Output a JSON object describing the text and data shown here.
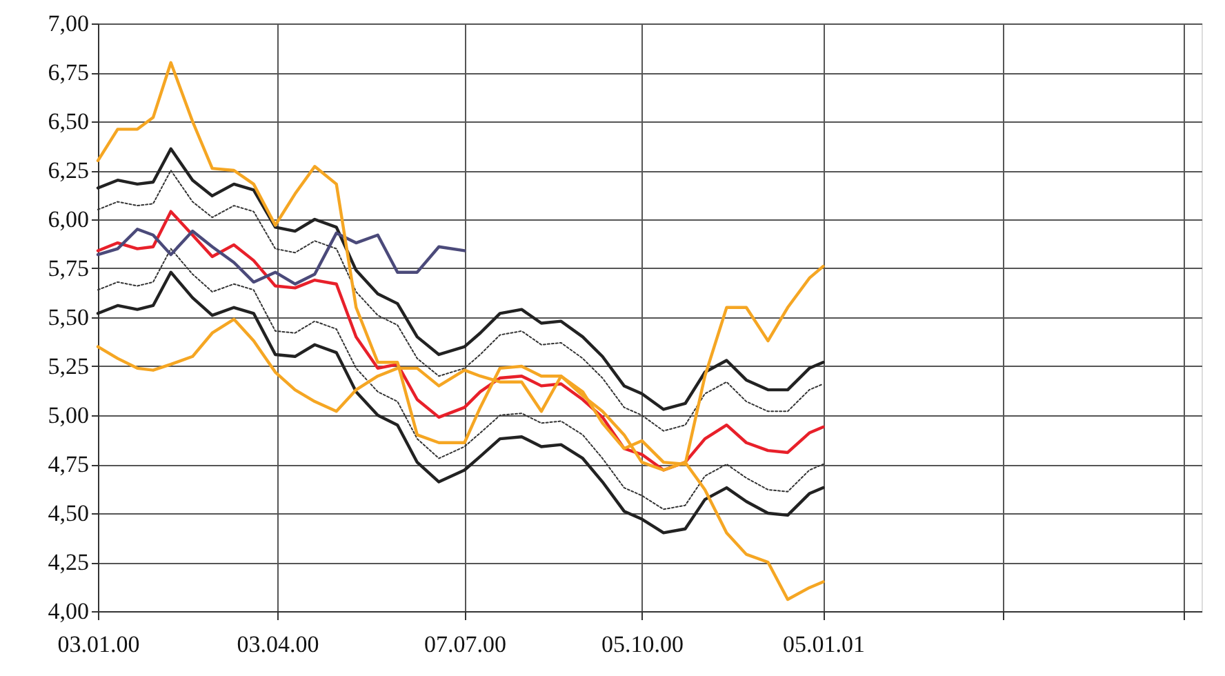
{
  "chart_data": {
    "type": "line",
    "grid": true,
    "marker": "none",
    "x": [
      "2000-01-03",
      "2000-01-13",
      "2000-01-23",
      "2000-01-31",
      "2000-02-09",
      "2000-02-20",
      "2000-03-01",
      "2000-03-12",
      "2000-03-22",
      "2000-04-02",
      "2000-04-12",
      "2000-04-22",
      "2000-05-03",
      "2000-05-13",
      "2000-05-24",
      "2000-06-03",
      "2000-06-13",
      "2000-06-24",
      "2000-07-07",
      "2000-07-15",
      "2000-07-25",
      "2000-08-05",
      "2000-08-15",
      "2000-08-25",
      "2000-09-05",
      "2000-09-15",
      "2000-09-26",
      "2000-10-05",
      "2000-10-16",
      "2000-10-27",
      "2000-11-06",
      "2000-11-17",
      "2000-11-27",
      "2000-12-08",
      "2000-12-18",
      "2000-12-29",
      "2001-01-05"
    ],
    "xlim": [
      "2000-01-03",
      "2001-07-16"
    ],
    "xticks": [
      {
        "value": "2000-01-03",
        "label": "03.01.00"
      },
      {
        "value": "2000-04-03",
        "label": "03.04.00"
      },
      {
        "value": "2000-07-07",
        "label": "07.07.00"
      },
      {
        "value": "2000-10-05",
        "label": "05.10.00"
      },
      {
        "value": "2001-01-05",
        "label": "05.01.01"
      },
      {
        "value": "2001-04-06",
        "label": null
      },
      {
        "value": "2001-07-07",
        "label": null
      }
    ],
    "ylim": [
      4,
      7
    ],
    "yticks": [
      {
        "value": 4,
        "label": "4,00"
      },
      {
        "value": 4.25,
        "label": "4,25"
      },
      {
        "value": 4.5,
        "label": "4,50"
      },
      {
        "value": 4.75,
        "label": "4,75"
      },
      {
        "value": 5,
        "label": "5,00"
      },
      {
        "value": 5.25,
        "label": "5,25"
      },
      {
        "value": 5.5,
        "label": "5,50"
      },
      {
        "value": 5.75,
        "label": "5,75"
      },
      {
        "value": 6,
        "label": "6,00"
      },
      {
        "value": 6.25,
        "label": "6,25"
      },
      {
        "value": 6.5,
        "label": "6,50"
      },
      {
        "value": 6.75,
        "label": "6,75"
      },
      {
        "value": 7,
        "label": "7,00"
      }
    ],
    "series": [
      {
        "color": "#222222",
        "line_style": "solid",
        "values": [
          6.16,
          6.2,
          6.18,
          6.19,
          6.36,
          6.2,
          6.12,
          6.18,
          6.15,
          5.96,
          5.94,
          6.0,
          5.96,
          5.74,
          5.62,
          5.57,
          5.4,
          5.31,
          5.35,
          5.42,
          5.52,
          5.54,
          5.47,
          5.48,
          5.4,
          5.3,
          5.15,
          5.11,
          5.03,
          5.06,
          5.22,
          5.28,
          5.18,
          5.13,
          5.13,
          5.24,
          5.27
        ]
      },
      {
        "color": "#333333",
        "line_style": "dotted",
        "values": [
          6.05,
          6.09,
          6.07,
          6.08,
          6.25,
          6.09,
          6.01,
          6.07,
          6.04,
          5.85,
          5.83,
          5.89,
          5.85,
          5.63,
          5.51,
          5.46,
          5.29,
          5.2,
          5.24,
          5.31,
          5.41,
          5.43,
          5.36,
          5.37,
          5.29,
          5.19,
          5.04,
          5.0,
          4.92,
          4.95,
          5.11,
          5.17,
          5.07,
          5.02,
          5.02,
          5.13,
          5.16
        ]
      },
      {
        "color": "#e8202a",
        "line_style": "solid",
        "values": [
          5.84,
          5.88,
          5.85,
          5.86,
          6.04,
          5.92,
          5.81,
          5.87,
          5.79,
          5.66,
          5.65,
          5.69,
          5.67,
          5.4,
          5.24,
          5.26,
          5.08,
          4.99,
          5.04,
          5.12,
          5.19,
          5.2,
          5.15,
          5.16,
          5.08,
          4.99,
          4.83,
          4.8,
          4.72,
          4.76,
          4.88,
          4.95,
          4.86,
          4.82,
          4.81,
          4.91,
          4.94
        ]
      },
      {
        "color": "#333333",
        "line_style": "dotted",
        "values": [
          5.64,
          5.68,
          5.66,
          5.68,
          5.85,
          5.72,
          5.63,
          5.67,
          5.64,
          5.43,
          5.42,
          5.48,
          5.44,
          5.24,
          5.12,
          5.07,
          4.88,
          4.78,
          4.84,
          4.91,
          5.0,
          5.01,
          4.96,
          4.97,
          4.9,
          4.78,
          4.63,
          4.59,
          4.52,
          4.54,
          4.69,
          4.75,
          4.68,
          4.62,
          4.61,
          4.72,
          4.75
        ]
      },
      {
        "color": "#222222",
        "line_style": "solid",
        "values": [
          5.52,
          5.56,
          5.54,
          5.56,
          5.73,
          5.6,
          5.51,
          5.55,
          5.52,
          5.31,
          5.3,
          5.36,
          5.32,
          5.12,
          5.0,
          4.95,
          4.76,
          4.66,
          4.72,
          4.79,
          4.88,
          4.89,
          4.84,
          4.85,
          4.78,
          4.66,
          4.51,
          4.47,
          4.4,
          4.42,
          4.57,
          4.63,
          4.56,
          4.5,
          4.49,
          4.6,
          4.63
        ]
      },
      {
        "color": "#4b4a7a",
        "line_style": "solid",
        "values": [
          5.82,
          5.85,
          5.95,
          5.92,
          5.82,
          5.94,
          5.86,
          5.78,
          5.68,
          5.73,
          5.67,
          5.72,
          5.93,
          5.88,
          5.92,
          5.73,
          5.73,
          5.86,
          5.84,
          null,
          null,
          null,
          null,
          null,
          null,
          null,
          null,
          null,
          null,
          null,
          null,
          null,
          null,
          null,
          null,
          null,
          null
        ]
      },
      {
        "color": "#f5a623",
        "line_style": "solid",
        "values": [
          6.3,
          6.46,
          6.46,
          6.52,
          6.8,
          6.5,
          6.26,
          6.25,
          6.18,
          5.97,
          6.13,
          6.27,
          6.18,
          5.55,
          5.27,
          5.27,
          4.9,
          4.86,
          4.86,
          5.04,
          5.24,
          5.25,
          5.2,
          5.2,
          5.12,
          4.96,
          4.83,
          4.87,
          4.76,
          4.75,
          5.2,
          5.55,
          5.55,
          5.38,
          5.55,
          5.7,
          5.76
        ]
      },
      {
        "color": "#f5a623",
        "line_style": "solid",
        "values": [
          5.35,
          5.29,
          5.24,
          5.23,
          5.26,
          5.3,
          5.42,
          5.49,
          5.38,
          5.22,
          5.13,
          5.07,
          5.02,
          5.13,
          5.2,
          5.24,
          5.24,
          5.15,
          5.23,
          5.2,
          5.17,
          5.17,
          5.02,
          5.2,
          5.1,
          5.02,
          4.9,
          4.76,
          4.72,
          4.76,
          4.62,
          4.4,
          4.29,
          4.25,
          4.06,
          4.12,
          4.15
        ]
      }
    ]
  }
}
